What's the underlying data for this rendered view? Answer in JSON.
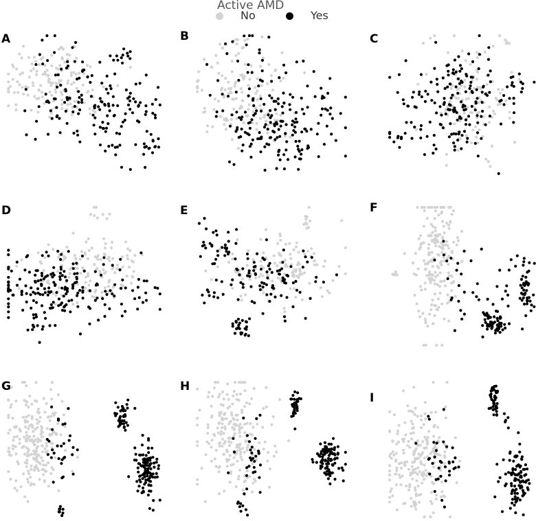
{
  "legend": {
    "title": "Active AMD",
    "entries": [
      {
        "label": "No",
        "color": "#d3d3d3"
      },
      {
        "label": "Yes",
        "color": "#000000"
      }
    ]
  },
  "chart_data": [
    {
      "type": "scatter",
      "panel": "A",
      "title": "",
      "xlabel": "",
      "ylabel": "",
      "axes": "hidden",
      "grid": false,
      "series": [
        {
          "name": "No",
          "color": "#d3d3d3"
        },
        {
          "name": "Yes",
          "color": "#000000"
        }
      ]
    },
    {
      "type": "scatter",
      "panel": "B",
      "title": "",
      "xlabel": "",
      "ylabel": "",
      "axes": "hidden",
      "grid": false,
      "series": [
        {
          "name": "No",
          "color": "#d3d3d3"
        },
        {
          "name": "Yes",
          "color": "#000000"
        }
      ]
    },
    {
      "type": "scatter",
      "panel": "C",
      "title": "",
      "xlabel": "",
      "ylabel": "",
      "axes": "hidden",
      "grid": false,
      "series": [
        {
          "name": "No",
          "color": "#d3d3d3"
        },
        {
          "name": "Yes",
          "color": "#000000"
        }
      ]
    },
    {
      "type": "scatter",
      "panel": "D",
      "title": "",
      "xlabel": "",
      "ylabel": "",
      "axes": "hidden",
      "grid": false,
      "series": [
        {
          "name": "No",
          "color": "#d3d3d3"
        },
        {
          "name": "Yes",
          "color": "#000000"
        }
      ]
    },
    {
      "type": "scatter",
      "panel": "E",
      "title": "",
      "xlabel": "",
      "ylabel": "",
      "axes": "hidden",
      "grid": false,
      "series": [
        {
          "name": "No",
          "color": "#d3d3d3"
        },
        {
          "name": "Yes",
          "color": "#000000"
        }
      ]
    },
    {
      "type": "scatter",
      "panel": "F",
      "title": "",
      "xlabel": "",
      "ylabel": "",
      "axes": "hidden",
      "grid": false,
      "series": [
        {
          "name": "No",
          "color": "#d3d3d3"
        },
        {
          "name": "Yes",
          "color": "#000000"
        }
      ]
    },
    {
      "type": "scatter",
      "panel": "G",
      "title": "",
      "xlabel": "",
      "ylabel": "",
      "axes": "hidden",
      "grid": false,
      "series": [
        {
          "name": "No",
          "color": "#d3d3d3"
        },
        {
          "name": "Yes",
          "color": "#000000"
        }
      ]
    },
    {
      "type": "scatter",
      "panel": "H",
      "title": "",
      "xlabel": "",
      "ylabel": "",
      "axes": "hidden",
      "grid": false,
      "series": [
        {
          "name": "No",
          "color": "#d3d3d3"
        },
        {
          "name": "Yes",
          "color": "#000000"
        }
      ]
    },
    {
      "type": "scatter",
      "panel": "I",
      "title": "",
      "xlabel": "",
      "ylabel": "",
      "axes": "hidden",
      "grid": false,
      "series": [
        {
          "name": "No",
          "color": "#d3d3d3"
        },
        {
          "name": "Yes",
          "color": "#000000"
        }
      ]
    }
  ]
}
